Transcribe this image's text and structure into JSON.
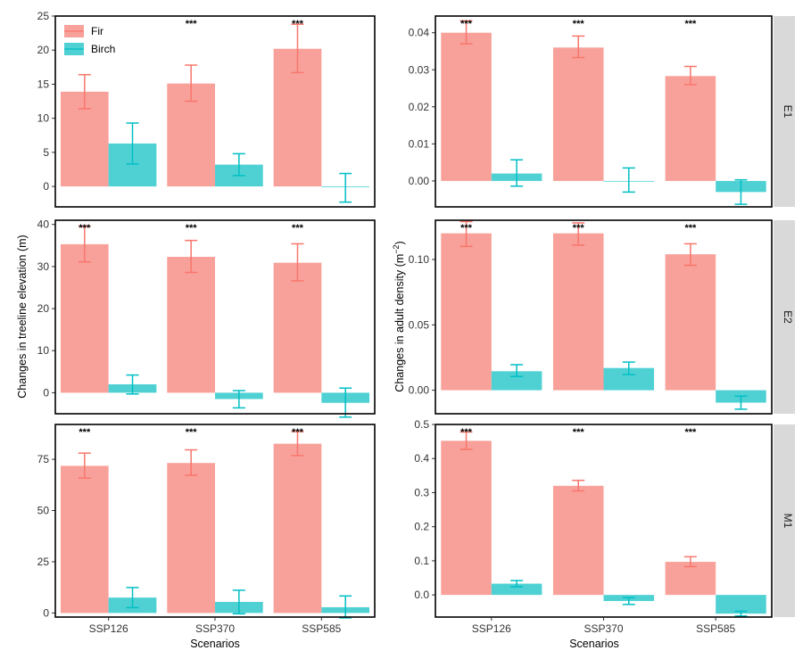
{
  "figure": {
    "ylabel_left": "Changes in treeline elevation (m)",
    "ylabel_right_main": "Changes in adult density (m",
    "ylabel_right_sup": "−2",
    "ylabel_right_close": ")",
    "xlabel": "Scenarios"
  },
  "colors": {
    "Fir": "#F8766D",
    "Birch": "#00BFC4",
    "strip_bg": "#D9D9D9"
  },
  "chart_data": [
    {
      "type": "bar",
      "row": "E1",
      "column": "treeline",
      "categories": [
        "SSP126",
        "SSP370",
        "SSP585"
      ],
      "ylim": [
        -3,
        25
      ],
      "yticks": [
        0,
        5,
        10,
        15,
        20,
        25
      ],
      "tick_labels": [
        "0",
        "5",
        "10",
        "15",
        "20",
        "25"
      ],
      "legend": {
        "position": "top-left",
        "entries": [
          "Fir",
          "Birch"
        ]
      },
      "series": [
        {
          "name": "Fir",
          "values": [
            13.9,
            15.1,
            20.2
          ],
          "err_low": [
            11.4,
            12.5,
            16.7
          ],
          "err_high": [
            16.4,
            17.8,
            23.8
          ]
        },
        {
          "name": "Birch",
          "values": [
            6.3,
            3.2,
            -0.1
          ],
          "err_low": [
            3.3,
            1.6,
            -2.3
          ],
          "err_high": [
            9.3,
            4.8,
            1.9
          ]
        }
      ],
      "significance": [
        "",
        "***",
        "***"
      ]
    },
    {
      "type": "bar",
      "row": "E1",
      "column": "density",
      "categories": [
        "SSP126",
        "SSP370",
        "SSP585"
      ],
      "ylim": [
        -0.007,
        0.0445
      ],
      "yticks": [
        0,
        0.01,
        0.02,
        0.03,
        0.04
      ],
      "tick_labels": [
        "0.00",
        "0.01",
        "0.02",
        "0.03",
        "0.04"
      ],
      "series": [
        {
          "name": "Fir",
          "values": [
            0.04,
            0.036,
            0.0283
          ],
          "err_low": [
            0.037,
            0.0333,
            0.026
          ],
          "err_high": [
            0.0432,
            0.0391,
            0.0309
          ]
        },
        {
          "name": "Birch",
          "values": [
            0.002,
            0.0,
            -0.003
          ],
          "err_low": [
            -0.0014,
            -0.003,
            -0.0063
          ],
          "err_high": [
            0.0057,
            0.0035,
            0.0003
          ]
        }
      ],
      "significance": [
        "***",
        "***",
        "***"
      ]
    },
    {
      "type": "bar",
      "row": "E2",
      "column": "treeline",
      "categories": [
        "SSP126",
        "SSP370",
        "SSP585"
      ],
      "ylim": [
        -5,
        41
      ],
      "yticks": [
        0,
        10,
        20,
        30,
        40
      ],
      "tick_labels": [
        "0",
        "10",
        "20",
        "30",
        "40"
      ],
      "series": [
        {
          "name": "Fir",
          "values": [
            35.3,
            32.3,
            30.9
          ],
          "err_low": [
            31.1,
            28.6,
            26.6
          ],
          "err_high": [
            39.6,
            36.2,
            35.4
          ]
        },
        {
          "name": "Birch",
          "values": [
            2.0,
            -1.5,
            -2.4
          ],
          "err_low": [
            -0.3,
            -3.6,
            -5.8
          ],
          "err_high": [
            4.2,
            0.5,
            1.1
          ]
        }
      ],
      "significance": [
        "***",
        "***",
        "***"
      ]
    },
    {
      "type": "bar",
      "row": "E2",
      "column": "density",
      "categories": [
        "SSP126",
        "SSP370",
        "SSP585"
      ],
      "ylim": [
        -0.018,
        0.13
      ],
      "yticks": [
        0,
        0.05,
        0.1
      ],
      "tick_labels": [
        "0.00",
        "0.05",
        "0.10"
      ],
      "series": [
        {
          "name": "Fir",
          "values": [
            0.12,
            0.12,
            0.104
          ],
          "err_low": [
            0.11,
            0.111,
            0.0955
          ],
          "err_high": [
            0.129,
            0.128,
            0.112
          ]
        },
        {
          "name": "Birch",
          "values": [
            0.0145,
            0.017,
            -0.0095
          ],
          "err_low": [
            0.0105,
            0.012,
            -0.0145
          ],
          "err_high": [
            0.0195,
            0.0215,
            -0.0045
          ]
        }
      ],
      "significance": [
        "***",
        "***",
        "***"
      ]
    },
    {
      "type": "bar",
      "row": "M1",
      "column": "treeline",
      "categories": [
        "SSP126",
        "SSP370",
        "SSP585"
      ],
      "ylim": [
        -2,
        92
      ],
      "yticks": [
        0,
        25,
        50,
        75
      ],
      "tick_labels": [
        "0",
        "25",
        "50",
        "75"
      ],
      "series": [
        {
          "name": "Fir",
          "values": [
            71.8,
            73.2,
            82.6
          ],
          "err_low": [
            65.8,
            67.2,
            76.8
          ],
          "err_high": [
            78.0,
            79.6,
            88.5
          ]
        },
        {
          "name": "Birch",
          "values": [
            7.5,
            5.4,
            2.8
          ],
          "err_low": [
            2.6,
            -0.4,
            -2.4
          ],
          "err_high": [
            12.4,
            11.1,
            8.3
          ]
        }
      ],
      "significance": [
        "***",
        "***",
        "***"
      ]
    },
    {
      "type": "bar",
      "row": "M1",
      "column": "density",
      "categories": [
        "SSP126",
        "SSP370",
        "SSP585"
      ],
      "ylim": [
        -0.065,
        0.5
      ],
      "yticks": [
        0,
        0.1,
        0.2,
        0.3,
        0.4,
        0.5
      ],
      "tick_labels": [
        "0.0",
        "0.1",
        "0.2",
        "0.3",
        "0.4",
        "0.5"
      ],
      "series": [
        {
          "name": "Fir",
          "values": [
            0.452,
            0.32,
            0.097
          ],
          "err_low": [
            0.427,
            0.305,
            0.083
          ],
          "err_high": [
            0.478,
            0.336,
            0.112
          ]
        },
        {
          "name": "Birch",
          "values": [
            0.033,
            -0.018,
            -0.055
          ],
          "err_low": [
            0.024,
            -0.028,
            -0.062
          ],
          "err_high": [
            0.042,
            -0.008,
            -0.048
          ]
        }
      ],
      "significance": [
        "***",
        "***",
        "***"
      ]
    }
  ]
}
